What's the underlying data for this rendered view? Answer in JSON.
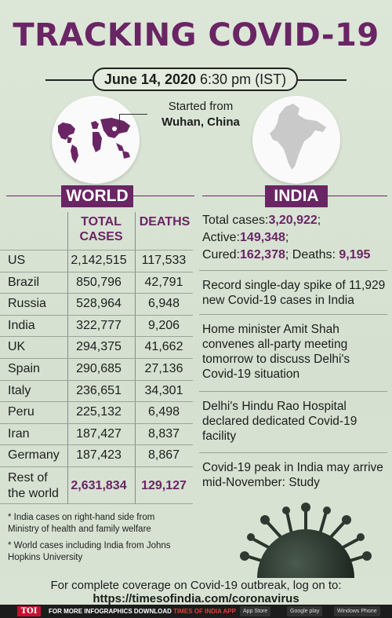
{
  "title": "TRACKING COVID-19",
  "date": {
    "date": "June 14, 2020",
    "time": "6:30 pm (IST)"
  },
  "origin": {
    "line1": "Started from",
    "line2": "Wuhan, China"
  },
  "world": {
    "tag": "WORLD",
    "col_total": "TOTAL CASES",
    "col_total_l1": "TOTAL",
    "col_total_l2": "CASES",
    "col_deaths": "DEATHS",
    "rows": [
      {
        "country": "US",
        "total": "2,142,515",
        "deaths": "117,533"
      },
      {
        "country": "Brazil",
        "total": "850,796",
        "deaths": "42,791"
      },
      {
        "country": "Russia",
        "total": "528,964",
        "deaths": "6,948"
      },
      {
        "country": "India",
        "total": "322,777",
        "deaths": "9,206"
      },
      {
        "country": "UK",
        "total": "294,375",
        "deaths": "41,662"
      },
      {
        "country": "Spain",
        "total": "290,685",
        "deaths": "27,136"
      },
      {
        "country": "Italy",
        "total": "236,651",
        "deaths": "34,301"
      },
      {
        "country": "Peru",
        "total": "225,132",
        "deaths": "6,498"
      },
      {
        "country": "Iran",
        "total": "187,427",
        "deaths": "8,837"
      },
      {
        "country": "Germany",
        "total": "187,423",
        "deaths": "8,867"
      }
    ],
    "rest": {
      "label_l1": "Rest of",
      "label_l2": "the world",
      "total": "2,631,834",
      "deaths": "129,127"
    },
    "footnotes": [
      "* India cases on right-hand side from Ministry of health and family welfare",
      "* World cases including India from Johns Hopkins University"
    ]
  },
  "india": {
    "tag": "INDIA",
    "total_label": "Total cases:",
    "total": "3,20,922",
    "active_label": "Active:",
    "active": "149,348",
    "cured_label": "Cured:",
    "cured": "162,378",
    "deaths_label": "Deaths:",
    "deaths": "9,195",
    "news": [
      "Record single-day spike of 11,929 new Covid-19 cases in India",
      "Home minister Amit Shah convenes all-party meeting tomorrow to discuss Delhi's Covid-19 situation",
      "Delhi's Hindu Rao Hospital declared dedicated Covid-19 facility",
      "Covid-19 peak in India may arrive mid-November: Study"
    ]
  },
  "footer": {
    "coverage": "For complete coverage on Covid-19 outbreak, log on to:",
    "url": "https://timesofindia.com/coronavirus",
    "bar_logo": "TOI",
    "bar_text": "FOR MORE  INFOGRAPHICS DOWNLOAD",
    "bar_app": "TIMES OF INDIA  APP",
    "stores": [
      "App Store",
      "Google play",
      "Windows Phone"
    ]
  },
  "colors": {
    "accent": "#6a2564",
    "background": "#d9e4d4"
  },
  "icons": [
    "world-globe-icon",
    "india-map-icon",
    "virus-illustration"
  ]
}
